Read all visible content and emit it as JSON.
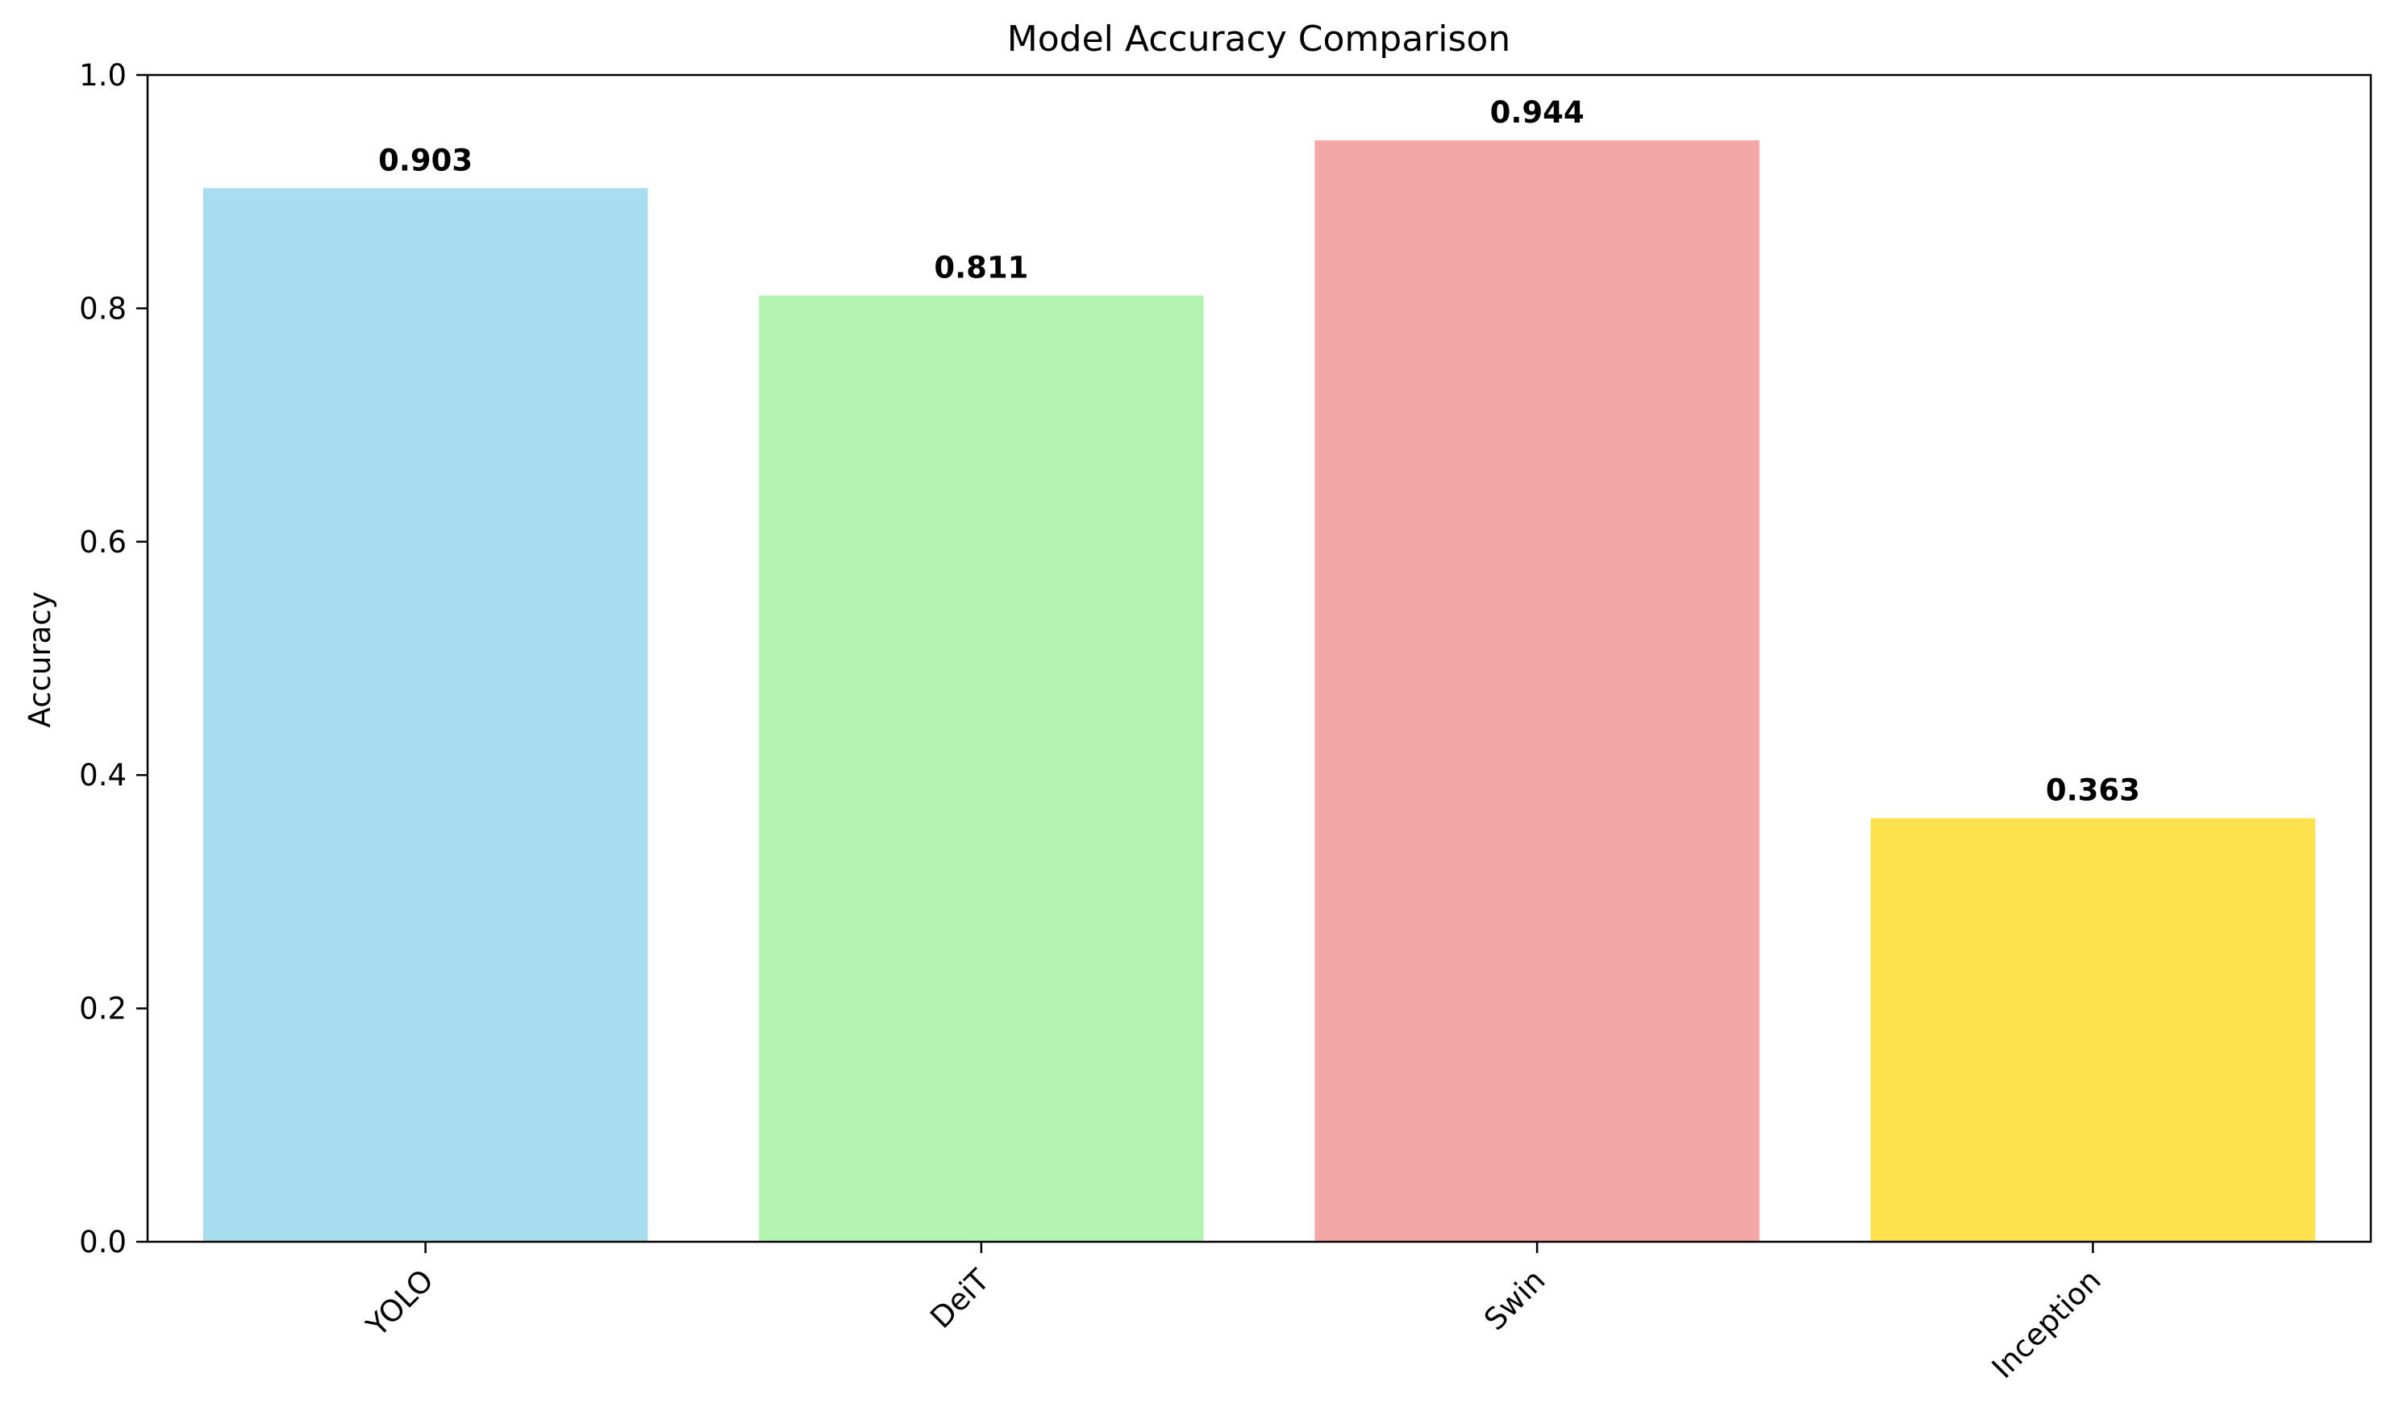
{
  "chart_data": {
    "type": "bar",
    "title": "Model Accuracy Comparison",
    "xlabel": "",
    "ylabel": "Accuracy",
    "categories": [
      "YOLO",
      "DeiT",
      "Swin",
      "Inception"
    ],
    "values": [
      0.903,
      0.811,
      0.944,
      0.363
    ],
    "value_labels": [
      "0.903",
      "0.811",
      "0.944",
      "0.363"
    ],
    "colors": [
      "#a8dcef",
      "#b2f4b0",
      "#f4a7a7",
      "#ffe14d"
    ],
    "ylim": [
      0,
      1.0
    ],
    "yticks": [
      0.0,
      0.2,
      0.4,
      0.6,
      0.8,
      1.0
    ],
    "ytick_labels": [
      "0.0",
      "0.2",
      "0.4",
      "0.6",
      "0.8",
      "1.0"
    ],
    "xtick_rotation_deg": 45,
    "grid": false,
    "legend": "none"
  }
}
